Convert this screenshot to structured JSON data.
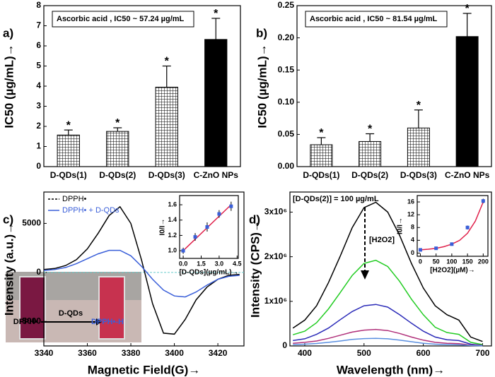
{
  "chart_data": [
    {
      "type": "bar",
      "label": "a)",
      "ylabel": "IC50 (µg/mL)→",
      "annotation": "Ascorbic acid , IC50 ~ 57.24 µg/mL",
      "star": "*",
      "categories": [
        "D-QDs(1)",
        "D-QDs(2)",
        "D-QDs(3)",
        "C-ZnO NPs"
      ],
      "values": [
        1.57,
        1.75,
        3.95,
        6.32
      ],
      "errors": [
        0.25,
        0.18,
        1.05,
        1.05
      ],
      "hatch": [
        true,
        true,
        true,
        false
      ],
      "color": "#000000",
      "ylim": [
        0,
        8
      ],
      "yticks": [
        0,
        1,
        2,
        3,
        4,
        5,
        6,
        7,
        8
      ]
    },
    {
      "type": "bar",
      "label": "b)",
      "ylabel": "IC50 (µg/mL)→",
      "annotation": "Ascorbic acid , IC50 ~ 81.54 µg/mL",
      "star": "*",
      "categories": [
        "D-QDs(1)",
        "D-QDs(2)",
        "D-QDs(3)",
        "C-ZnO NPs"
      ],
      "values": [
        0.034,
        0.039,
        0.06,
        0.202
      ],
      "errors": [
        0.011,
        0.012,
        0.028,
        0.036
      ],
      "hatch": [
        true,
        true,
        true,
        false
      ],
      "color": "#000000",
      "ylim": [
        0,
        0.25
      ],
      "yticks": [
        {
          "value": 0,
          "label": "0.00"
        },
        0.05,
        {
          "value": 0.1,
          "label": "0.10"
        },
        0.15,
        {
          "value": 0.2,
          "label": "0.20"
        },
        0.25
      ]
    },
    {
      "type": "line",
      "label": "c)",
      "xlabel": "Magnetic Field(G)→",
      "ylabel": "Intensity (a.u.)→",
      "zero_line": true,
      "zero_color": "#66cccc",
      "x": [
        3340,
        3345,
        3350,
        3355,
        3360,
        3365,
        3370,
        3375,
        3380,
        3385,
        3390,
        3395,
        3400,
        3405,
        3410,
        3415,
        3420,
        3425,
        3430
      ],
      "series": [
        {
          "name": "DPPH•",
          "color": "#000000",
          "values": [
            300,
            400,
            700,
            1300,
            2400,
            4000,
            5800,
            6700,
            5000,
            1200,
            -3200,
            -6200,
            -6300,
            -4800,
            -2800,
            -1500,
            -700,
            -300,
            -200
          ]
        },
        {
          "name": "DPPH• + D-QDs",
          "color": "#3a5fd9",
          "values": [
            200,
            300,
            500,
            900,
            1400,
            1900,
            2250,
            2250,
            1700,
            600,
            -700,
            -1800,
            -2400,
            -2500,
            -2000,
            -1300,
            -700,
            -400,
            -300
          ]
        }
      ],
      "xlim": [
        3340,
        3432
      ],
      "xticks": [
        3340,
        3360,
        3380,
        3400,
        3420
      ],
      "ylim": [
        -7500,
        8200
      ],
      "yticks": [
        -5000,
        0,
        5000
      ],
      "photo_labels": [
        "DPPH•",
        "D-QDs",
        "DPPH•-H"
      ]
    },
    {
      "type": "scatter",
      "xlabel": "[D-QDs](µg/mL)→",
      "ylabel": "I0/I→",
      "x": [
        0,
        1,
        2,
        3,
        4
      ],
      "values": [
        1.0,
        1.18,
        1.31,
        1.48,
        1.58
      ],
      "errors": [
        0.04,
        0.05,
        0.06,
        0.05,
        0.06
      ],
      "color": "#3a5fd9",
      "fit": {
        "x": [
          0,
          4
        ],
        "values": [
          1.0,
          1.6
        ],
        "color": "#e0204a"
      },
      "xlim": [
        -0.3,
        4.6
      ],
      "xticks": [
        {
          "value": 0,
          "label": "0.0"
        },
        1.5,
        {
          "value": 3,
          "label": "3.0"
        },
        4.5
      ],
      "ylim": [
        0.9,
        1.72
      ],
      "yticks": [
        {
          "value": 1,
          "label": "1.0"
        },
        1.2,
        1.4,
        1.6
      ]
    },
    {
      "type": "line",
      "label": "d)",
      "xlabel": "Wavelength (nm)→",
      "ylabel": "Intensity (CPS)→",
      "annotation": "[D-QDs(2)] = 100 µg/mL",
      "arrow_label": "[H2O2]",
      "x": [
        380,
        400,
        420,
        440,
        460,
        480,
        500,
        520,
        540,
        560,
        580,
        600,
        620,
        640,
        660,
        680,
        700
      ],
      "series": [
        {
          "color": "#000000",
          "values": [
            400000,
            580000,
            900000,
            1420000,
            2020000,
            2650000,
            3100000,
            3220000,
            3000000,
            2480000,
            1850000,
            1300000,
            900000,
            700000,
            580000,
            200000,
            100000
          ]
        },
        {
          "color": "#22cc22",
          "values": [
            250000,
            330000,
            520000,
            830000,
            1200000,
            1580000,
            1850000,
            1920000,
            1780000,
            1450000,
            1050000,
            700000,
            420000,
            300000,
            260000,
            80000,
            30000
          ]
        },
        {
          "color": "#2a2ab8",
          "values": [
            120000,
            160000,
            260000,
            400000,
            590000,
            770000,
            900000,
            930000,
            870000,
            700000,
            510000,
            330000,
            200000,
            140000,
            120000,
            40000,
            15000
          ]
        },
        {
          "color": "#b0307a",
          "values": [
            60000,
            80000,
            110000,
            170000,
            240000,
            310000,
            355000,
            370000,
            345000,
            280000,
            200000,
            130000,
            80000,
            60000,
            50000,
            20000,
            10000
          ]
        },
        {
          "color": "#5a8fe0",
          "values": [
            30000,
            40000,
            55000,
            80000,
            110000,
            145000,
            165000,
            170000,
            160000,
            130000,
            95000,
            60000,
            40000,
            30000,
            25000,
            10000,
            5000
          ]
        }
      ],
      "xlim": [
        375,
        715
      ],
      "xticks": [
        400,
        500,
        600,
        700
      ],
      "ylim": [
        0,
        3450000
      ],
      "yticks": [
        0,
        {
          "value": 1000000,
          "label": "1x10⁶"
        },
        {
          "value": 2000000,
          "label": "2x10⁶"
        },
        {
          "value": 3000000,
          "label": "3x10⁶"
        }
      ]
    },
    {
      "type": "scatter",
      "xlabel": "[H2O2](µM)→",
      "ylabel": "I0/I→",
      "x": [
        0,
        50,
        100,
        150,
        200
      ],
      "values": [
        1.0,
        1.5,
        2.8,
        8.0,
        16.3
      ],
      "errors": [
        0.4,
        0.5,
        0.5,
        0.6,
        0.7
      ],
      "color": "#3a5fd9",
      "fit": {
        "x": [
          0,
          25,
          50,
          75,
          100,
          125,
          150,
          175,
          200
        ],
        "values": [
          1.0,
          1.2,
          1.5,
          2.0,
          2.8,
          4.0,
          6.2,
          10.0,
          16.0
        ],
        "color": "#e0204a"
      },
      "xlim": [
        -10,
        215
      ],
      "xticks": [
        0,
        50,
        100,
        150,
        200
      ],
      "ylim": [
        -1,
        18
      ],
      "yticks": [
        0,
        4,
        8,
        12,
        16
      ]
    }
  ]
}
